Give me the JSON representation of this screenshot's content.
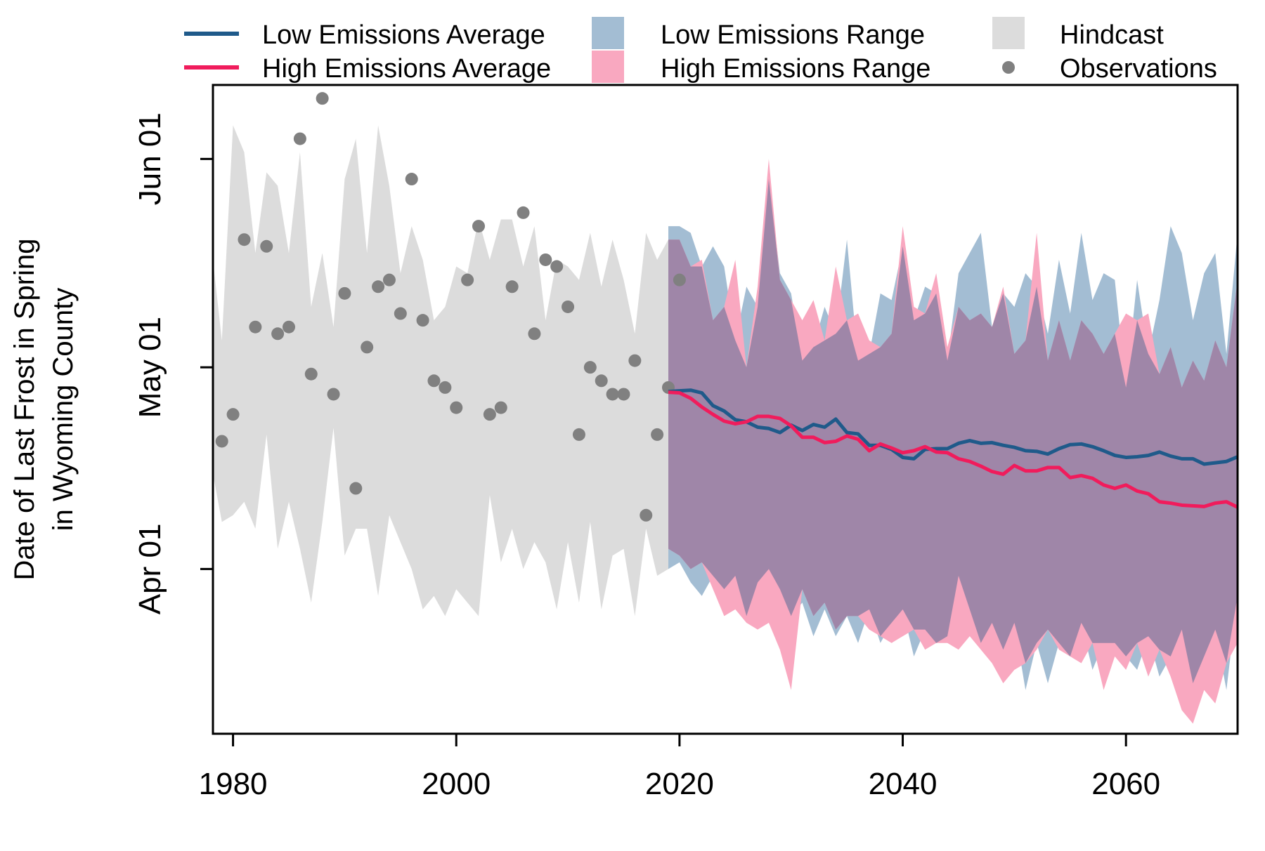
{
  "chart_data": {
    "type": "line",
    "title": "",
    "xlabel": "",
    "ylabel_line1": "Date of Last Frost in Spring",
    "ylabel_line2": "in Wyoming County",
    "x_ticks": [
      1980,
      2000,
      2020,
      2040,
      2060
    ],
    "y_ticks": [
      {
        "label": "Apr 01",
        "doy": 91
      },
      {
        "label": "May 01",
        "doy": 121
      },
      {
        "label": "Jun 01",
        "doy": 152
      }
    ],
    "xlim": [
      1978.2,
      2070
    ],
    "ylim": [
      66.5,
      163
    ],
    "legend": {
      "position": "top",
      "items": [
        {
          "label": "Low Emissions Average",
          "kind": "line",
          "color": "#1f5a8a"
        },
        {
          "label": "Low Emissions Range",
          "kind": "box",
          "color": "#a3bdd3"
        },
        {
          "label": "Hindcast",
          "kind": "box",
          "color": "#dcdcdc"
        },
        {
          "label": "High Emissions Average",
          "kind": "line",
          "color": "#f01c5c"
        },
        {
          "label": "High Emissions Range",
          "kind": "box",
          "color": "#f9a8c0"
        },
        {
          "label": "Observations",
          "kind": "point",
          "color": "#808080"
        }
      ]
    },
    "colors": {
      "hindcast": "#dcdcdc",
      "low_range": "#a3bdd3",
      "high_range": "#f9a8c0",
      "overlap": "#9f86a8",
      "low_avg": "#1f5a8a",
      "high_avg": "#f01c5c",
      "observations": "#808080"
    },
    "observations": {
      "x": [
        1979,
        1980,
        1981,
        1982,
        1983,
        1984,
        1985,
        1986,
        1987,
        1988,
        1989,
        1990,
        1991,
        1992,
        1993,
        1994,
        1995,
        1996,
        1997,
        1998,
        1999,
        2000,
        2001,
        2002,
        2003,
        2004,
        2005,
        2006,
        2007,
        2008,
        2009,
        2010,
        2011,
        2012,
        2013,
        2014,
        2015,
        2016,
        2017,
        2018,
        2019,
        2020
      ],
      "y": [
        110,
        114,
        140,
        127,
        139,
        126,
        127,
        155,
        120,
        161,
        117,
        132,
        103,
        124,
        133,
        134,
        129,
        149,
        128,
        119,
        118,
        115,
        134,
        142,
        114,
        115,
        133,
        144,
        126,
        137,
        136,
        130,
        111,
        121,
        119,
        117,
        117,
        122,
        99,
        111,
        118,
        134
      ]
    },
    "hindcast": {
      "x": [
        1978,
        1979,
        1980,
        1981,
        1982,
        1983,
        1984,
        1985,
        1986,
        1987,
        1988,
        1989,
        1990,
        1991,
        1992,
        1993,
        1994,
        1995,
        1996,
        1997,
        1998,
        1999,
        2000,
        2001,
        2002,
        2003,
        2004,
        2005,
        2006,
        2007,
        2008,
        2009,
        2010,
        2011,
        2012,
        2013,
        2014,
        2015,
        2016,
        2017,
        2018,
        2019
      ],
      "upper": [
        140,
        125,
        157,
        153,
        138,
        150,
        148,
        138,
        153,
        130,
        138,
        127,
        149,
        155,
        138,
        157,
        148,
        135,
        142,
        137,
        128,
        130,
        136,
        135,
        143,
        137,
        143,
        143,
        136,
        142,
        128,
        137,
        136,
        134,
        141,
        133,
        140,
        134,
        126,
        141,
        137,
        140
      ],
      "lower": [
        107,
        98,
        99,
        101,
        97,
        111,
        94,
        101,
        94,
        86,
        98,
        112,
        93,
        97,
        97,
        87,
        99,
        95,
        91,
        85,
        87,
        84,
        88,
        86,
        84,
        102,
        92,
        97,
        91,
        95,
        92,
        85,
        95,
        86,
        98,
        85,
        93,
        94,
        84,
        97,
        90,
        91
      ]
    },
    "low_range": {
      "x": [
        2019,
        2020,
        2021,
        2022,
        2023,
        2024,
        2025,
        2026,
        2027,
        2028,
        2029,
        2030,
        2031,
        2032,
        2033,
        2034,
        2035,
        2036,
        2037,
        2038,
        2039,
        2040,
        2041,
        2042,
        2043,
        2044,
        2045,
        2046,
        2047,
        2048,
        2049,
        2050,
        2051,
        2052,
        2053,
        2054,
        2055,
        2056,
        2057,
        2058,
        2059,
        2060,
        2061,
        2062,
        2063,
        2064,
        2065,
        2066,
        2067,
        2068,
        2069,
        2070
      ],
      "upper": [
        142,
        142,
        141,
        136,
        139,
        136,
        125,
        133,
        130,
        149,
        135,
        132,
        122,
        124,
        130,
        126,
        140,
        122,
        123,
        132,
        131,
        139,
        128,
        133,
        132,
        122,
        135,
        138,
        141,
        127,
        132,
        130,
        135,
        133,
        126,
        137,
        129,
        141,
        131,
        135,
        134,
        118,
        134,
        123,
        131,
        142,
        138,
        128,
        135,
        138,
        123,
        141
      ],
      "lower": [
        91,
        92,
        89,
        87,
        90,
        88,
        90,
        84,
        89,
        91,
        88,
        84,
        86,
        81,
        85,
        81,
        84,
        80,
        85,
        80,
        83,
        85,
        78,
        82,
        80,
        81,
        90,
        85,
        80,
        83,
        79,
        83,
        73,
        80,
        74,
        80,
        78,
        83,
        76,
        80,
        80,
        78,
        76,
        81,
        75,
        78,
        82,
        74,
        78,
        82,
        73,
        87
      ]
    },
    "high_range": {
      "x": [
        2019,
        2020,
        2021,
        2022,
        2023,
        2024,
        2025,
        2026,
        2027,
        2028,
        2029,
        2030,
        2031,
        2032,
        2033,
        2034,
        2035,
        2036,
        2037,
        2038,
        2039,
        2040,
        2041,
        2042,
        2043,
        2044,
        2045,
        2046,
        2047,
        2048,
        2049,
        2050,
        2051,
        2052,
        2053,
        2054,
        2055,
        2056,
        2057,
        2058,
        2059,
        2060,
        2061,
        2062,
        2063,
        2064,
        2065,
        2066,
        2067,
        2068,
        2069,
        2070
      ],
      "upper": [
        140,
        140,
        136,
        137,
        128,
        130,
        137,
        121,
        133,
        152,
        134,
        131,
        128,
        131,
        125,
        136,
        128,
        129,
        125,
        124,
        126,
        142,
        130,
        129,
        135,
        124,
        130,
        128,
        129,
        127,
        133,
        123,
        125,
        141,
        122,
        128,
        122,
        128,
        126,
        123,
        126,
        129,
        128,
        129,
        120,
        124,
        118,
        122,
        119,
        125,
        121,
        134
      ],
      "lower": [
        94,
        93,
        91,
        92,
        88,
        84,
        85,
        83,
        82,
        83,
        79,
        73,
        88,
        84,
        86,
        82,
        84,
        84,
        82,
        81,
        80,
        81,
        82,
        79,
        80,
        80,
        79,
        81,
        79,
        77,
        74,
        76,
        77,
        79,
        82,
        79,
        78,
        77,
        80,
        73,
        78,
        76,
        80,
        75,
        79,
        75,
        70,
        68,
        73,
        71,
        77,
        80
      ]
    },
    "low_avg": {
      "x": [
        2019,
        2020,
        2021,
        2022,
        2023,
        2024,
        2025,
        2026,
        2027,
        2028,
        2029,
        2030,
        2031,
        2032,
        2033,
        2034,
        2035,
        2036,
        2037,
        2038,
        2039,
        2040,
        2041,
        2042,
        2043,
        2044,
        2045,
        2046,
        2047,
        2048,
        2049,
        2050,
        2051,
        2052,
        2053,
        2054,
        2055,
        2056,
        2057,
        2058,
        2059,
        2060,
        2061,
        2062,
        2063,
        2064,
        2065,
        2066,
        2067,
        2068,
        2069,
        2070
      ],
      "values": [
        117.4,
        117.5,
        117.6,
        117.2,
        115.3,
        114.5,
        113.2,
        112.9,
        112.1,
        111.9,
        111.3,
        112.4,
        111.6,
        112.5,
        112.1,
        113.3,
        111.3,
        111.1,
        109.4,
        109.4,
        108.8,
        107.6,
        107.4,
        108.8,
        108.9,
        108.9,
        109.7,
        110.1,
        109.7,
        109.8,
        109.4,
        109.1,
        108.6,
        108.5,
        108.1,
        108.9,
        109.5,
        109.6,
        109.2,
        108.6,
        107.9,
        107.6,
        107.7,
        107.9,
        108.4,
        107.8,
        107.4,
        107.4,
        106.6,
        106.8,
        107.0,
        107.7
      ]
    },
    "high_avg": {
      "x": [
        2019,
        2020,
        2021,
        2022,
        2023,
        2024,
        2025,
        2026,
        2027,
        2028,
        2029,
        2030,
        2031,
        2032,
        2033,
        2034,
        2035,
        2036,
        2037,
        2038,
        2039,
        2040,
        2041,
        2042,
        2043,
        2044,
        2045,
        2046,
        2047,
        2048,
        2049,
        2050,
        2051,
        2052,
        2053,
        2054,
        2055,
        2056,
        2057,
        2058,
        2059,
        2060,
        2061,
        2062,
        2063,
        2064,
        2065,
        2066,
        2067,
        2068,
        2069,
        2070
      ],
      "values": [
        117.3,
        117.2,
        116.4,
        115.1,
        114.0,
        113.0,
        112.6,
        112.9,
        113.7,
        113.7,
        113.4,
        112.3,
        110.6,
        110.6,
        109.8,
        110.0,
        110.8,
        110.3,
        108.6,
        109.6,
        109.0,
        108.3,
        108.6,
        109.2,
        108.4,
        108.3,
        107.4,
        107.0,
        106.3,
        105.5,
        105.1,
        106.4,
        105.6,
        105.6,
        106.1,
        106.1,
        104.6,
        104.9,
        104.5,
        103.5,
        103.0,
        103.5,
        102.6,
        102.2,
        101.0,
        100.8,
        100.5,
        100.4,
        100.3,
        100.8,
        101.0,
        100.2
      ]
    }
  }
}
